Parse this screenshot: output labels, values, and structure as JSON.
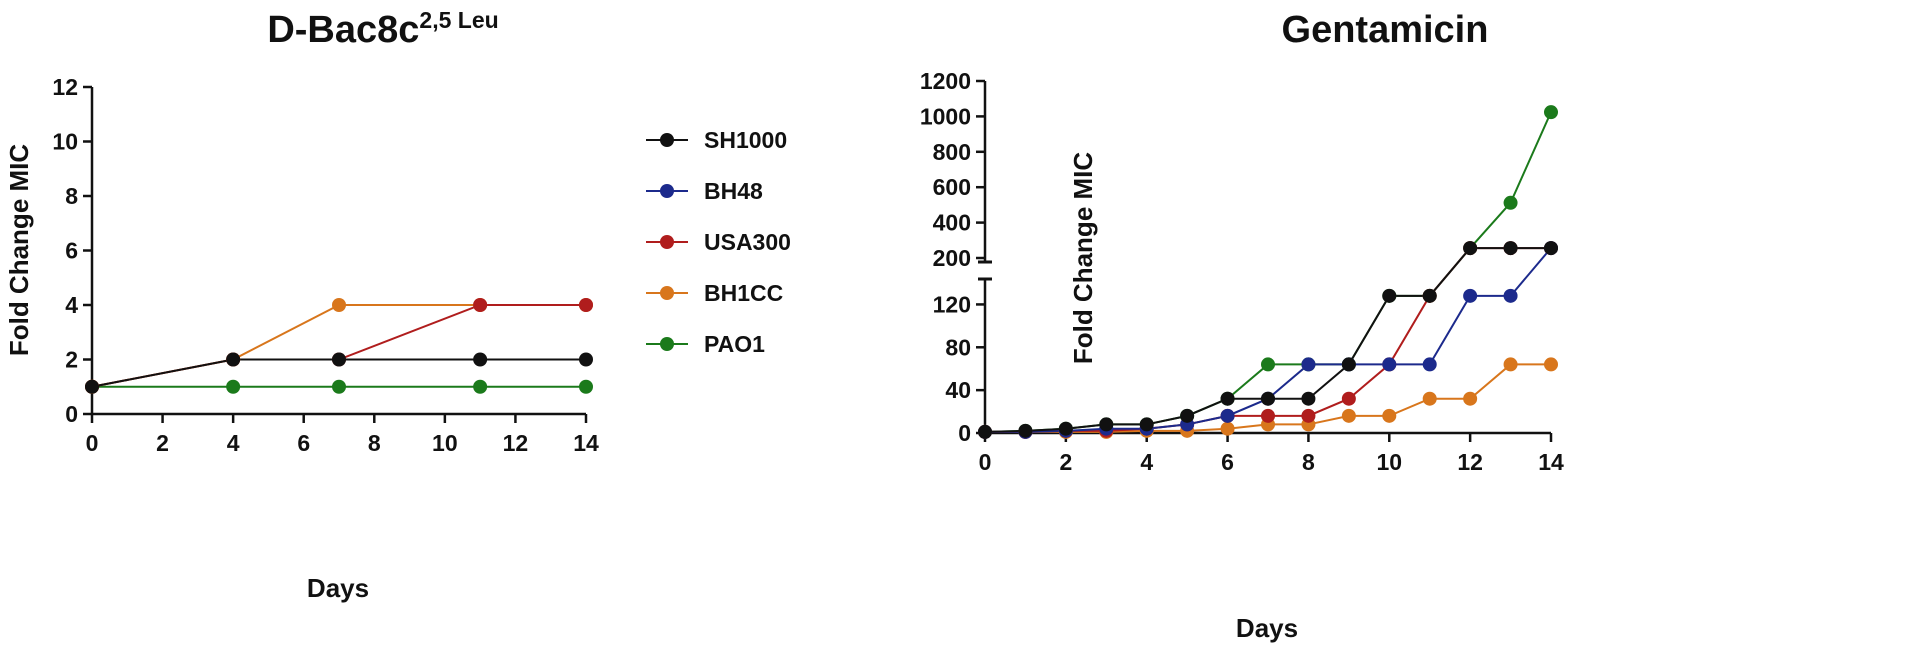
{
  "chart_data": [
    {
      "type": "line",
      "title_main": "D-Bac8c",
      "title_sup": "2,5 Leu",
      "xlabel": "Days",
      "ylabel": "Fold Change MIC",
      "xlim": [
        0,
        14
      ],
      "ylim": [
        0,
        12
      ],
      "xticks": [
        "0",
        "2",
        "4",
        "6",
        "8",
        "10",
        "12",
        "14"
      ],
      "yticks": [
        "0",
        "2",
        "4",
        "6",
        "8",
        "10",
        "12"
      ],
      "grid": false,
      "series": [
        {
          "name": "PAO1",
          "color": "#1b7a1b",
          "x": [
            0,
            4,
            7,
            11,
            14
          ],
          "y": [
            1,
            1,
            1,
            1,
            1
          ]
        },
        {
          "name": "BH1CC",
          "color": "#d8761c",
          "x": [
            0,
            4,
            7,
            11,
            14
          ],
          "y": [
            1,
            2,
            4,
            4,
            4
          ]
        },
        {
          "name": "USA300",
          "color": "#b01d1d",
          "x": [
            0,
            4,
            7,
            11,
            14
          ],
          "y": [
            1,
            2,
            2,
            4,
            4
          ]
        },
        {
          "name": "SH1000",
          "color": "#111111",
          "x": [
            0,
            4,
            7,
            11,
            14
          ],
          "y": [
            1,
            2,
            2,
            2,
            2
          ]
        }
      ]
    },
    {
      "type": "line",
      "title": "Gentamicin",
      "xlabel": "Days",
      "ylabel": "Fold Change MIC",
      "xlim": [
        0,
        14
      ],
      "ylim_lower": [
        0,
        140
      ],
      "ylim_upper": [
        200,
        1200
      ],
      "xticks": [
        "0",
        "2",
        "4",
        "6",
        "8",
        "10",
        "12",
        "14"
      ],
      "yticks_lower": [
        "0",
        "40",
        "80",
        "120"
      ],
      "yticks_upper": [
        "200",
        "400",
        "600",
        "800",
        "1000",
        "1200"
      ],
      "grid": false,
      "series": [
        {
          "name": "PAO1",
          "color": "#1b7a1b",
          "x": [
            0,
            1,
            2,
            3,
            4,
            5,
            6,
            7,
            8,
            9,
            10,
            11,
            12,
            13,
            14
          ],
          "y": [
            1,
            2,
            4,
            8,
            8,
            16,
            32,
            64,
            64,
            64,
            128,
            128,
            256,
            512,
            1024
          ]
        },
        {
          "name": "BH1CC",
          "color": "#d8761c",
          "x": [
            0,
            1,
            2,
            3,
            4,
            5,
            6,
            7,
            8,
            9,
            10,
            11,
            12,
            13,
            14
          ],
          "y": [
            1,
            1,
            1,
            1,
            2,
            2,
            4,
            8,
            8,
            16,
            16,
            32,
            32,
            64,
            64
          ]
        },
        {
          "name": "USA300",
          "color": "#b01d1d",
          "x": [
            0,
            1,
            2,
            3,
            4,
            5,
            6,
            7,
            8,
            9,
            10,
            11,
            12,
            13,
            14
          ],
          "y": [
            1,
            1,
            2,
            2,
            4,
            8,
            16,
            16,
            16,
            32,
            64,
            128,
            256,
            256,
            256
          ]
        },
        {
          "name": "BH48",
          "color": "#1c2a8c",
          "x": [
            0,
            1,
            2,
            3,
            4,
            5,
            6,
            7,
            8,
            9,
            10,
            11,
            12,
            13,
            14
          ],
          "y": [
            1,
            1,
            2,
            4,
            4,
            8,
            16,
            32,
            64,
            64,
            64,
            64,
            128,
            128,
            256
          ]
        },
        {
          "name": "SH1000",
          "color": "#111111",
          "x": [
            0,
            1,
            2,
            3,
            4,
            5,
            6,
            7,
            8,
            9,
            10,
            11,
            12,
            13,
            14
          ],
          "y": [
            1,
            2,
            4,
            8,
            8,
            16,
            32,
            32,
            32,
            64,
            128,
            128,
            256,
            256,
            256
          ]
        }
      ]
    }
  ],
  "legend": {
    "placement": "between charts",
    "items": [
      {
        "label": "SH1000",
        "color": "#111111"
      },
      {
        "label": "BH48",
        "color": "#1c2a8c"
      },
      {
        "label": "USA300",
        "color": "#b01d1d"
      },
      {
        "label": "BH1CC",
        "color": "#d8761c"
      },
      {
        "label": "PAO1",
        "color": "#1b7a1b"
      }
    ]
  }
}
